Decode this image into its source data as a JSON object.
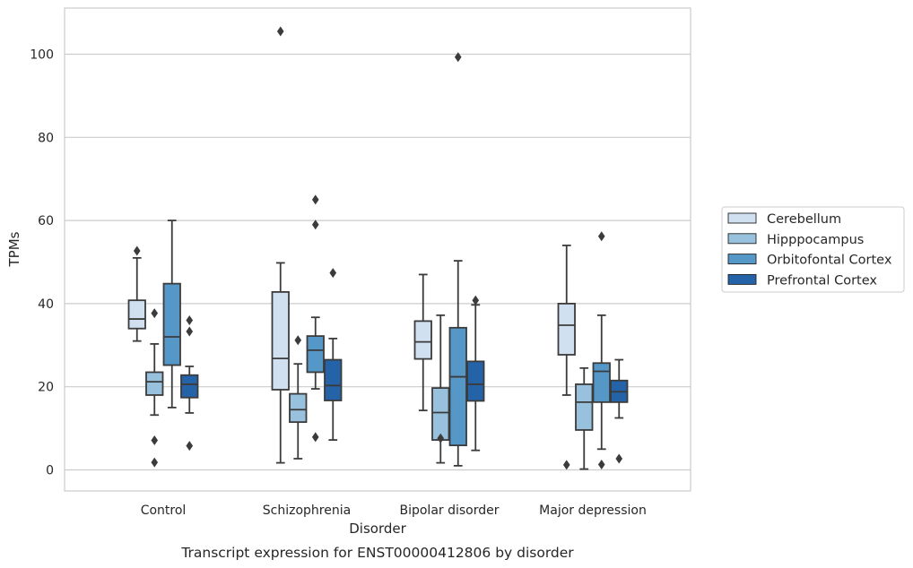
{
  "chart_data": {
    "type": "box",
    "title": "",
    "caption": "Transcript expression for ENST00000412806 by disorder",
    "xlabel": "Disorder",
    "ylabel": "TPMs",
    "ylim": [
      -5,
      111
    ],
    "yticks": [
      0,
      20,
      40,
      60,
      80,
      100
    ],
    "grid": "horizontal",
    "legend_position": "right",
    "categories": [
      "Control",
      "Schizophrenia",
      "Bipolar disorder",
      "Major depression"
    ],
    "series": [
      {
        "name": "Cerebellum",
        "color": "#d0e0f0",
        "boxes": [
          {
            "q1": 34,
            "median": 36.3,
            "q3": 40.8,
            "whisker_low": 31,
            "whisker_high": 51,
            "outliers": [
              52.7
            ]
          },
          {
            "q1": 19.3,
            "median": 26.8,
            "q3": 42.8,
            "whisker_low": 1.7,
            "whisker_high": 49.8,
            "outliers": [
              105.5
            ]
          },
          {
            "q1": 26.7,
            "median": 30.8,
            "q3": 35.8,
            "whisker_low": 14.3,
            "whisker_high": 47,
            "outliers": []
          },
          {
            "q1": 27.7,
            "median": 34.8,
            "q3": 40,
            "whisker_low": 18,
            "whisker_high": 54,
            "outliers": [
              1.2
            ]
          }
        ]
      },
      {
        "name": "Hipppocampus",
        "color": "#98c1dd",
        "boxes": [
          {
            "q1": 18,
            "median": 21.2,
            "q3": 23.5,
            "whisker_low": 13.2,
            "whisker_high": 30.3,
            "outliers": [
              37.7,
              7.1,
              1.8
            ]
          },
          {
            "q1": 11.5,
            "median": 14.5,
            "q3": 18.3,
            "whisker_low": 2.7,
            "whisker_high": 25.5,
            "outliers": [
              31.2
            ]
          },
          {
            "q1": 7.2,
            "median": 13.8,
            "q3": 19.7,
            "whisker_low": 1.7,
            "whisker_high": 37.2,
            "outliers": [
              7.6
            ]
          },
          {
            "q1": 9.6,
            "median": 16.3,
            "q3": 20.6,
            "whisker_low": 0.2,
            "whisker_high": 24.5,
            "outliers": []
          }
        ]
      },
      {
        "name": "Orbitofontal Cortex",
        "color": "#5597c6",
        "boxes": [
          {
            "q1": 25.2,
            "median": 32,
            "q3": 44.8,
            "whisker_low": 15,
            "whisker_high": 60,
            "outliers": []
          },
          {
            "q1": 23.5,
            "median": 28.8,
            "q3": 32.2,
            "whisker_low": 19.5,
            "whisker_high": 36.7,
            "outliers": [
              65,
              59,
              7.9
            ]
          },
          {
            "q1": 5.9,
            "median": 22.4,
            "q3": 34.2,
            "whisker_low": 1,
            "whisker_high": 50.3,
            "outliers": [
              99.3
            ]
          },
          {
            "q1": 16.3,
            "median": 23.7,
            "q3": 25.7,
            "whisker_low": 5,
            "whisker_high": 37.2,
            "outliers": [
              56.2,
              1.3
            ]
          }
        ]
      },
      {
        "name": "Prefrontal Cortex",
        "color": "#2563a8",
        "boxes": [
          {
            "q1": 17.4,
            "median": 20.6,
            "q3": 22.8,
            "whisker_low": 13.7,
            "whisker_high": 24.9,
            "outliers": [
              36,
              33.3,
              5.8
            ]
          },
          {
            "q1": 16.7,
            "median": 20.3,
            "q3": 26.5,
            "whisker_low": 7.2,
            "whisker_high": 31.6,
            "outliers": [
              47.4
            ]
          },
          {
            "q1": 16.6,
            "median": 20.6,
            "q3": 26.1,
            "whisker_low": 4.7,
            "whisker_high": 39.7,
            "outliers": [
              40.8
            ]
          },
          {
            "q1": 16.3,
            "median": 18.8,
            "q3": 21.5,
            "whisker_low": 12.5,
            "whisker_high": 26.5,
            "outliers": [
              2.7
            ]
          }
        ]
      }
    ]
  }
}
